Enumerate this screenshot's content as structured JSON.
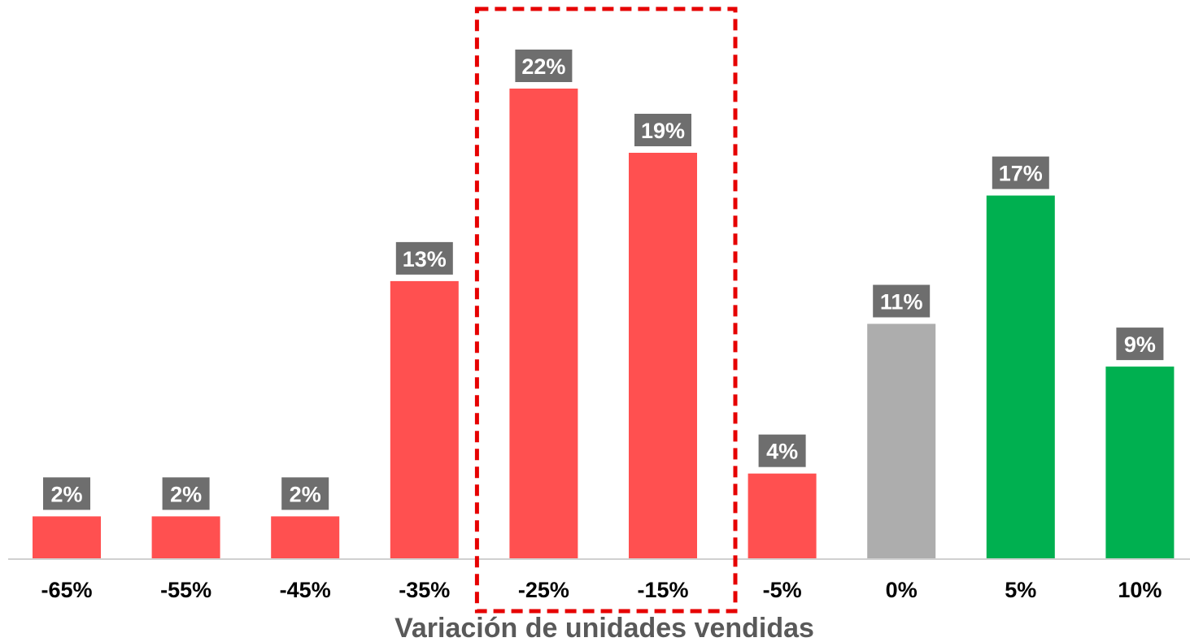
{
  "chart_data": {
    "type": "bar",
    "title": "",
    "xlabel": "Variación de unidades vendidas",
    "ylabel": "",
    "categories": [
      "-65%",
      "-55%",
      "-45%",
      "-35%",
      "-25%",
      "-15%",
      "-5%",
      "0%",
      "5%",
      "10%"
    ],
    "values": [
      2,
      2,
      2,
      13,
      22,
      19,
      4,
      11,
      17,
      9
    ],
    "value_labels": [
      "2%",
      "2%",
      "2%",
      "13%",
      "22%",
      "19%",
      "4%",
      "11%",
      "17%",
      "9%"
    ],
    "bar_colors": [
      "#ff5050",
      "#ff5050",
      "#ff5050",
      "#ff5050",
      "#ff5050",
      "#ff5050",
      "#ff5050",
      "#adadad",
      "#00b050",
      "#00b050"
    ],
    "label_box_color": "#6e6e6e",
    "highlight": {
      "categories": [
        "-25%",
        "-15%"
      ],
      "style": "dashed-box",
      "color": "#e60000"
    },
    "ylim": [
      0,
      22
    ],
    "grid": false,
    "legend": "none"
  }
}
